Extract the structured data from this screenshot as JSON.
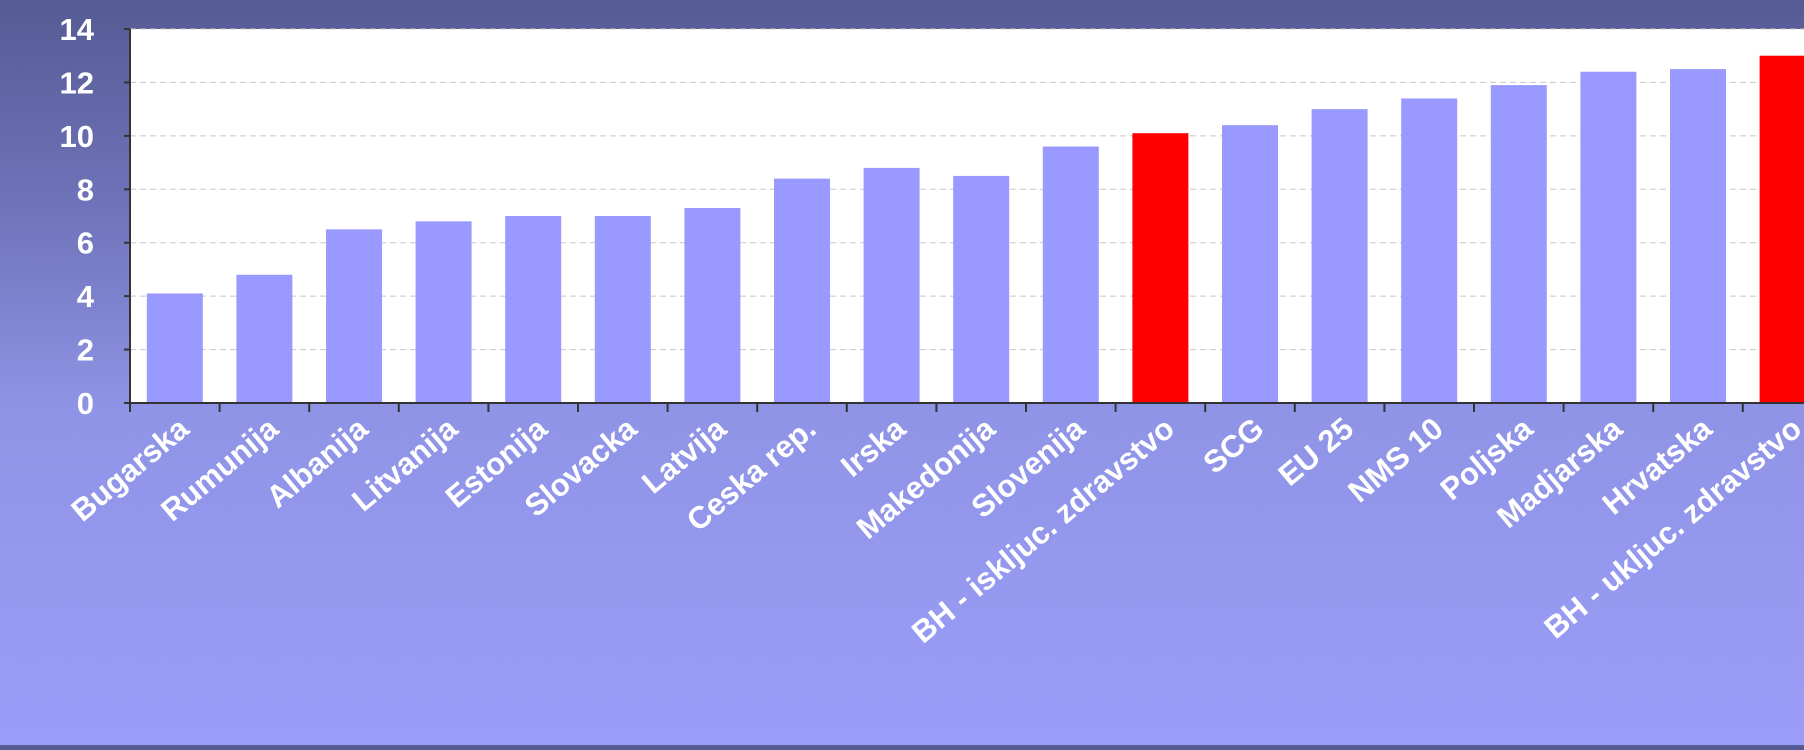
{
  "chart_data": {
    "type": "bar",
    "categories": [
      "Bugarska",
      "Rumunija",
      "Albanija",
      "Litvanija",
      "Estonija",
      "Slovacka",
      "Latvija",
      "Ceska rep.",
      "Irska",
      "Makedonija",
      "Slovenija",
      "BH - iskljuc. zdravstvo",
      "SCG",
      "EU 25",
      "NMS 10",
      "Poljska",
      "Madjarska",
      "Hrvatska",
      "BH - ukljuc. zdravstvo"
    ],
    "values": [
      4.1,
      4.8,
      6.5,
      6.8,
      7.0,
      7.0,
      7.3,
      8.4,
      8.8,
      8.5,
      9.6,
      10.1,
      10.4,
      11.0,
      11.4,
      11.9,
      12.4,
      12.5,
      13.0
    ],
    "highlight": [
      "BH - iskljuc. zdravstvo",
      "BH - ukljuc. zdravstvo"
    ],
    "colors": {
      "bar": "#9999ff",
      "highlight": "#ff0000",
      "plot_bg": "#ffffff",
      "grid": "#c8c8c8",
      "axis": "#333333",
      "text": "#ffffff"
    },
    "yticks": [
      0,
      2,
      4,
      6,
      8,
      10,
      12,
      14
    ],
    "ylim": [
      0,
      14
    ],
    "title": "",
    "xlabel": "",
    "ylabel": "",
    "grid": true,
    "legend": "none"
  }
}
